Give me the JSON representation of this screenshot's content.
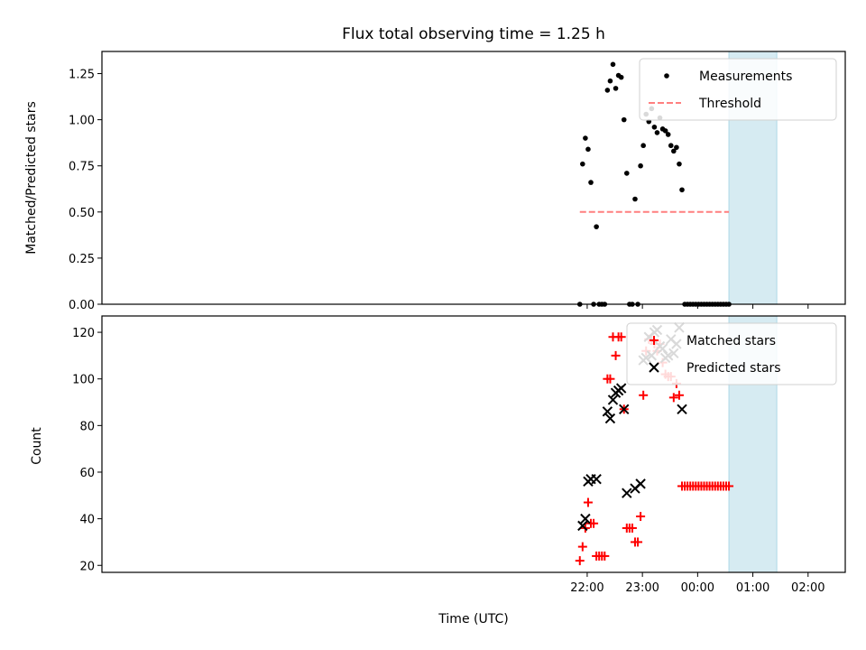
{
  "chart_data": [
    {
      "type": "scatter",
      "title": "Flux total observing time = 1.25 h",
      "xlabel": "",
      "ylabel": "Matched/Predicted stars",
      "ylim": [
        0,
        1.37
      ],
      "yticks": [
        "0.00",
        "0.25",
        "0.50",
        "0.75",
        "1.00",
        "1.25"
      ],
      "ytick_values": [
        0,
        0.25,
        0.5,
        0.75,
        1.0,
        1.25
      ],
      "legend": "top-right",
      "shaded_region": [
        "00:34",
        "01:26"
      ],
      "series": [
        {
          "name": "Measurements",
          "marker": "dot",
          "color": "#000000",
          "points": [
            [
              "21:52",
              0.0
            ],
            [
              "21:55",
              0.76
            ],
            [
              "21:58",
              0.9
            ],
            [
              "22:01",
              0.84
            ],
            [
              "22:04",
              0.66
            ],
            [
              "22:07",
              0.0
            ],
            [
              "22:10",
              0.42
            ],
            [
              "22:13",
              0.0
            ],
            [
              "22:16",
              0.0
            ],
            [
              "22:19",
              0.0
            ],
            [
              "22:22",
              1.16
            ],
            [
              "22:25",
              1.21
            ],
            [
              "22:28",
              1.3
            ],
            [
              "22:31",
              1.17
            ],
            [
              "22:34",
              1.24
            ],
            [
              "22:37",
              1.23
            ],
            [
              "22:40",
              1.0
            ],
            [
              "22:43",
              0.71
            ],
            [
              "22:46",
              0.0
            ],
            [
              "22:49",
              0.0
            ],
            [
              "22:52",
              0.57
            ],
            [
              "22:55",
              0.0
            ],
            [
              "22:58",
              0.75
            ],
            [
              "23:01",
              0.86
            ],
            [
              "23:04",
              1.03
            ],
            [
              "23:07",
              0.99
            ],
            [
              "23:10",
              1.06
            ],
            [
              "23:13",
              0.96
            ],
            [
              "23:16",
              0.93
            ],
            [
              "23:19",
              1.01
            ],
            [
              "23:22",
              0.95
            ],
            [
              "23:25",
              0.94
            ],
            [
              "23:28",
              0.92
            ],
            [
              "23:31",
              0.86
            ],
            [
              "23:34",
              0.83
            ],
            [
              "23:37",
              0.85
            ],
            [
              "23:40",
              0.76
            ],
            [
              "23:43",
              0.62
            ],
            [
              "23:46",
              0.0
            ],
            [
              "23:49",
              0.0
            ],
            [
              "23:52",
              0.0
            ],
            [
              "23:55",
              0.0
            ],
            [
              "23:58",
              0.0
            ],
            [
              "00:01",
              0.0
            ],
            [
              "00:04",
              0.0
            ],
            [
              "00:07",
              0.0
            ],
            [
              "00:10",
              0.0
            ],
            [
              "00:13",
              0.0
            ],
            [
              "00:16",
              0.0
            ],
            [
              "00:19",
              0.0
            ],
            [
              "00:22",
              0.0
            ],
            [
              "00:25",
              0.0
            ],
            [
              "00:28",
              0.0
            ],
            [
              "00:31",
              0.0
            ],
            [
              "00:34",
              0.0
            ]
          ]
        },
        {
          "name": "Threshold",
          "marker": "dashed-line",
          "color": "#ff7f7f",
          "points": [
            [
              "21:52",
              0.5
            ],
            [
              "00:34",
              0.5
            ]
          ]
        }
      ]
    },
    {
      "type": "scatter",
      "title": "",
      "xlabel": "Time (UTC)",
      "ylabel": "Count",
      "ylim": [
        17,
        127
      ],
      "yticks": [
        "20",
        "40",
        "60",
        "80",
        "100",
        "120"
      ],
      "ytick_values": [
        20,
        40,
        60,
        80,
        100,
        120
      ],
      "xticks": [
        "22:00",
        "23:00",
        "00:00",
        "01:00",
        "02:00"
      ],
      "legend": "top-right",
      "shaded_region": [
        "00:34",
        "01:26"
      ],
      "series": [
        {
          "name": "Matched stars",
          "marker": "plus",
          "color": "#ff0000",
          "points": [
            [
              "21:52",
              22
            ],
            [
              "21:55",
              28
            ],
            [
              "21:58",
              36
            ],
            [
              "22:01",
              47
            ],
            [
              "22:04",
              38
            ],
            [
              "22:07",
              38
            ],
            [
              "22:10",
              24
            ],
            [
              "22:13",
              24
            ],
            [
              "22:16",
              24
            ],
            [
              "22:19",
              24
            ],
            [
              "22:22",
              100
            ],
            [
              "22:25",
              100
            ],
            [
              "22:28",
              118
            ],
            [
              "22:31",
              110
            ],
            [
              "22:34",
              118
            ],
            [
              "22:37",
              118
            ],
            [
              "22:40",
              87
            ],
            [
              "22:43",
              36
            ],
            [
              "22:46",
              36
            ],
            [
              "22:49",
              36
            ],
            [
              "22:52",
              30
            ],
            [
              "22:55",
              30
            ],
            [
              "22:58",
              41
            ],
            [
              "23:01",
              93
            ],
            [
              "23:04",
              112
            ],
            [
              "23:07",
              117
            ],
            [
              "23:10",
              117
            ],
            [
              "23:13",
              115
            ],
            [
              "23:16",
              112
            ],
            [
              "23:19",
              115
            ],
            [
              "23:22",
              107
            ],
            [
              "23:25",
              102
            ],
            [
              "23:28",
              101
            ],
            [
              "23:31",
              101
            ],
            [
              "23:34",
              92
            ],
            [
              "23:37",
              98
            ],
            [
              "23:40",
              93
            ],
            [
              "23:43",
              54
            ],
            [
              "23:46",
              54
            ],
            [
              "23:49",
              54
            ],
            [
              "23:52",
              54
            ],
            [
              "23:55",
              54
            ],
            [
              "23:58",
              54
            ],
            [
              "00:01",
              54
            ],
            [
              "00:04",
              54
            ],
            [
              "00:07",
              54
            ],
            [
              "00:10",
              54
            ],
            [
              "00:13",
              54
            ],
            [
              "00:16",
              54
            ],
            [
              "00:19",
              54
            ],
            [
              "00:22",
              54
            ],
            [
              "00:25",
              54
            ],
            [
              "00:28",
              54
            ],
            [
              "00:31",
              54
            ],
            [
              "00:34",
              54
            ]
          ]
        },
        {
          "name": "Predicted stars",
          "marker": "x",
          "color": "#000000",
          "points": [
            [
              "21:55",
              37
            ],
            [
              "21:58",
              40
            ],
            [
              "22:01",
              56
            ],
            [
              "22:04",
              57
            ],
            [
              "22:10",
              57
            ],
            [
              "22:22",
              86
            ],
            [
              "22:25",
              83
            ],
            [
              "22:28",
              91
            ],
            [
              "22:31",
              94
            ],
            [
              "22:34",
              95
            ],
            [
              "22:37",
              96
            ],
            [
              "22:40",
              87
            ],
            [
              "22:43",
              51
            ],
            [
              "22:52",
              53
            ],
            [
              "22:58",
              55
            ],
            [
              "23:01",
              108
            ],
            [
              "23:04",
              109
            ],
            [
              "23:07",
              118
            ],
            [
              "23:10",
              110
            ],
            [
              "23:13",
              120
            ],
            [
              "23:16",
              121
            ],
            [
              "23:19",
              114
            ],
            [
              "23:22",
              113
            ],
            [
              "23:25",
              109
            ],
            [
              "23:28",
              110
            ],
            [
              "23:31",
              117
            ],
            [
              "23:34",
              111
            ],
            [
              "23:37",
              115
            ],
            [
              "23:40",
              122
            ],
            [
              "23:43",
              87
            ]
          ]
        }
      ]
    }
  ]
}
